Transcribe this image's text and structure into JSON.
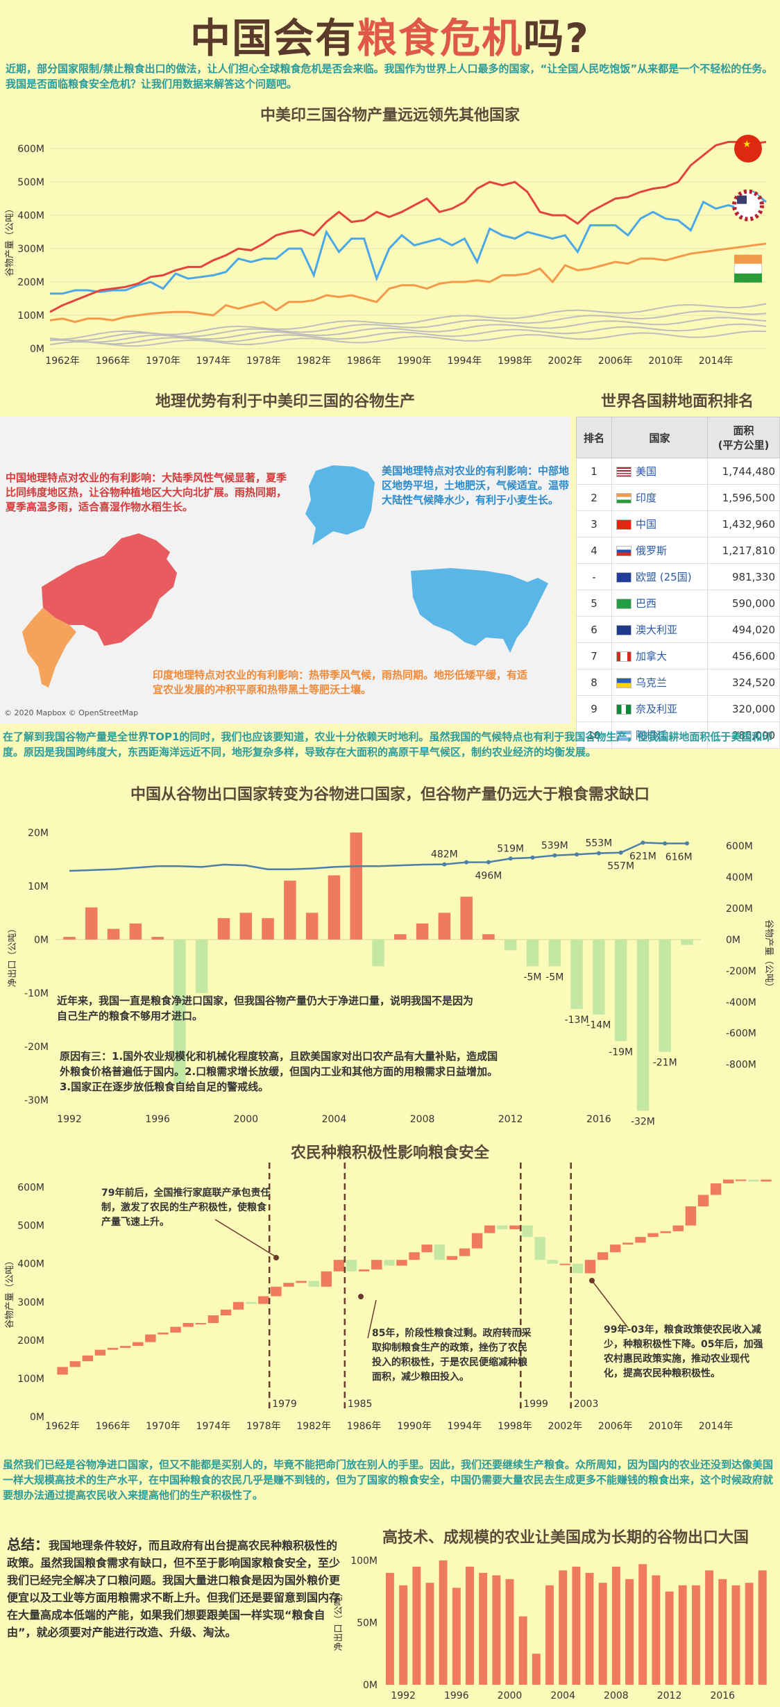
{
  "title": {
    "part1": "中国会有",
    "highlight": "粮食危机",
    "part2": "吗?"
  },
  "intro": "近期，部分国家限制/禁止粮食出口的做法，让人们担心全球粮食危机是否会来临。我国作为世界上人口最多的国家，“让全国人民吃饱饭”从来都是一个不轻松的任务。我国是否面临粮食安全危机？让我们用数据来解答这个问题吧。",
  "colors": {
    "china": "#e0443a",
    "usa": "#4aa8e8",
    "india": "#f39a4a",
    "other": "#b5b5b5",
    "bar_pos": "#ef7a5e",
    "bar_neg": "#c4e8a4",
    "line": "#4a7fa8",
    "teal": "#2a9a9a"
  },
  "chart_data": [
    {
      "type": "line",
      "title": "中美印三国谷物产量远远领先其他国家",
      "ylabel": "谷物产量（公吨）",
      "ylim": [
        0,
        650
      ],
      "yticks": [
        "0M",
        "100M",
        "200M",
        "300M",
        "400M",
        "500M",
        "600M"
      ],
      "xticks": [
        "1962年",
        "1966年",
        "1970年",
        "1974年",
        "1978年",
        "1982年",
        "1986年",
        "1990年",
        "1994年",
        "1998年",
        "2002年",
        "2006年",
        "2010年",
        "2014年"
      ],
      "x_start": 1961,
      "series": [
        {
          "name": "中国",
          "icon": "china-flag-icon",
          "values": [
            110,
            130,
            145,
            160,
            175,
            180,
            185,
            195,
            215,
            220,
            235,
            245,
            245,
            265,
            280,
            300,
            295,
            315,
            340,
            350,
            355,
            340,
            380,
            410,
            380,
            385,
            410,
            395,
            410,
            430,
            450,
            410,
            420,
            440,
            480,
            500,
            490,
            500,
            470,
            410,
            400,
            400,
            375,
            410,
            430,
            450,
            455,
            470,
            480,
            485,
            500,
            550,
            580,
            610,
            620,
            620,
            615,
            620
          ]
        },
        {
          "name": "美国",
          "icon": "usa-flag-icon",
          "values": [
            165,
            165,
            175,
            175,
            170,
            175,
            175,
            190,
            200,
            180,
            225,
            210,
            215,
            220,
            230,
            270,
            260,
            270,
            270,
            300,
            300,
            220,
            350,
            290,
            330,
            330,
            210,
            300,
            340,
            310,
            320,
            330,
            310,
            330,
            260,
            360,
            340,
            330,
            350,
            340,
            330,
            340,
            290,
            370,
            370,
            370,
            340,
            390,
            410,
            390,
            385,
            355,
            440,
            420,
            430,
            420,
            470,
            440
          ]
        },
        {
          "name": "印度",
          "icon": "india-flag-icon",
          "values": [
            85,
            90,
            80,
            90,
            90,
            85,
            95,
            100,
            105,
            108,
            110,
            110,
            105,
            100,
            130,
            120,
            130,
            140,
            115,
            140,
            140,
            145,
            160,
            155,
            160,
            150,
            140,
            180,
            190,
            190,
            180,
            195,
            200,
            200,
            205,
            200,
            220,
            220,
            225,
            240,
            200,
            250,
            235,
            240,
            250,
            260,
            255,
            270,
            270,
            265,
            275,
            285,
            290,
            295,
            300,
            305,
            310,
            315
          ]
        },
        {
          "name": "其他国家",
          "values": [
            40,
            40,
            42,
            44,
            46,
            48,
            50,
            52,
            54,
            55,
            56,
            58,
            60,
            62,
            64,
            66,
            68,
            70,
            72,
            74,
            76,
            78,
            80,
            82,
            84,
            86,
            88,
            90,
            92,
            94,
            96,
            98,
            100,
            102,
            104,
            106,
            108,
            110,
            112,
            114,
            116,
            118,
            120,
            122,
            124,
            126,
            128,
            130,
            132,
            134,
            136,
            138,
            140,
            142,
            144,
            146,
            148,
            150
          ]
        }
      ]
    },
    {
      "type": "bar",
      "title": "中国从谷物出口国家转变为谷物进口国家，但谷物产量仍远大于粮食需求缺口",
      "ylabel": "净出口（公吨）",
      "ylabel_right": "谷物产量（公吨）",
      "ylim": [
        -30,
        24
      ],
      "yticks_left": [
        "-30M",
        "-20M",
        "-10M",
        "0M",
        "10M",
        "20M"
      ],
      "yticks_right": [
        "-800M",
        "-600M",
        "-400M",
        "-200M",
        "0M",
        "200M",
        "400M",
        "600M"
      ],
      "xticks": [
        "1992",
        "1996",
        "2000",
        "2004",
        "2008",
        "2012",
        "2016"
      ],
      "x_start": 1992,
      "values": [
        0.5,
        6,
        2,
        3,
        0.5,
        -27,
        -10,
        4,
        5,
        4,
        11,
        5,
        12,
        20,
        -5,
        1,
        3,
        5,
        8,
        1,
        -2,
        -5,
        -5,
        -13,
        -14,
        -19,
        -32,
        -21,
        -1
      ],
      "bar_labels": [
        {
          "i": 21,
          "t": "-5M"
        },
        {
          "i": 22,
          "t": "-5M"
        },
        {
          "i": 23,
          "t": "-13M"
        },
        {
          "i": 24,
          "t": "-14M"
        },
        {
          "i": 25,
          "t": "-19M"
        },
        {
          "i": 26,
          "t": "-32M"
        },
        {
          "i": 27,
          "t": "-21M"
        }
      ],
      "line_values": [
        440,
        445,
        450,
        460,
        470,
        470,
        465,
        480,
        475,
        450,
        450,
        455,
        465,
        470,
        470,
        475,
        480,
        482,
        495,
        496,
        519,
        525,
        539,
        545,
        553,
        557,
        621,
        616,
        616
      ],
      "line_labels": [
        {
          "i": 17,
          "t": "482M",
          "pos": "above"
        },
        {
          "i": 19,
          "t": "496M",
          "pos": "below"
        },
        {
          "i": 20,
          "t": "519M",
          "pos": "above"
        },
        {
          "i": 22,
          "t": "539M",
          "pos": "above"
        },
        {
          "i": 24,
          "t": "553M",
          "pos": "above"
        },
        {
          "i": 25,
          "t": "557M",
          "pos": "below"
        },
        {
          "i": 26,
          "t": "621M",
          "pos": "below"
        },
        {
          "i": 27,
          "t": "616M",
          "pos": "belowright"
        }
      ]
    },
    {
      "type": "bar",
      "title": "农民种粮积极性影响粮食安全",
      "ylabel": "谷物产量（公吨）",
      "ylim": [
        0,
        650
      ],
      "yticks": [
        "0M",
        "100M",
        "200M",
        "300M",
        "400M",
        "500M",
        "600M"
      ],
      "xticks": [
        "1962年",
        "1966年",
        "1970年",
        "1974年",
        "1978年",
        "1982年",
        "1986年",
        "1990年",
        "1994年",
        "1998年",
        "2002年",
        "2006年",
        "2010年",
        "2014年"
      ],
      "x_start": 1961,
      "values": [
        110,
        130,
        145,
        160,
        175,
        180,
        185,
        195,
        215,
        220,
        235,
        245,
        245,
        265,
        280,
        300,
        295,
        315,
        340,
        350,
        355,
        340,
        380,
        410,
        380,
        385,
        410,
        395,
        410,
        430,
        450,
        410,
        420,
        440,
        480,
        500,
        490,
        500,
        470,
        410,
        400,
        400,
        375,
        410,
        430,
        450,
        455,
        470,
        480,
        485,
        500,
        550,
        580,
        610,
        620,
        620,
        615,
        620
      ],
      "markers": [
        "1979",
        "1985",
        "1999",
        "2003"
      ]
    },
    {
      "type": "bar",
      "title": "高技术、成规模的农业让美国成为长期的谷物出口大国",
      "ylabel": "净出口（公吨）",
      "ylim": [
        0,
        105
      ],
      "yticks": [
        "0M",
        "50M",
        "100M"
      ],
      "xticks": [
        "1992",
        "1996",
        "2000",
        "2004",
        "2008",
        "2012",
        "2016"
      ],
      "x_start": 1991,
      "values": [
        90,
        80,
        95,
        82,
        100,
        78,
        95,
        90,
        88,
        85,
        55,
        25,
        80,
        92,
        95,
        90,
        82,
        95,
        85,
        97,
        88,
        75,
        80,
        80,
        92,
        85,
        80,
        82,
        92
      ]
    }
  ],
  "map": {
    "title": "地理优势有利于中美印三国的谷物生产",
    "china_text": "中国地理特点对农业的有利影响：大陆季风性气候显著，夏季比同纬度地区热，让谷物种植地区大大向北扩展。雨热同期，夏季高温多雨，适合喜湿作物水稻生长。",
    "usa_text": "美国地理特点对农业的有利影响：中部地区地势平坦，土地肥沃，气候适宜。温带大陆性气候降水少，有利于小麦生长。",
    "india_text": "印度地理特点对农业的有利影响：热带季风气候，雨热同期。地形低矮平缓，有适宜农业发展的冲积平原和热带黑土等肥沃土壤。",
    "credit": "© 2020 Mapbox © OpenStreetMap"
  },
  "table": {
    "title": "世界各国耕地面积排名",
    "headers": {
      "rank": "排名",
      "country": "国家",
      "area": "面积\n(平方公里)"
    },
    "rows": [
      {
        "rank": "1",
        "country": "美国",
        "area": "1,744,480",
        "flag": "usa"
      },
      {
        "rank": "2",
        "country": "印度",
        "area": "1,596,500",
        "flag": "india"
      },
      {
        "rank": "3",
        "country": "中国",
        "area": "1,432,960",
        "flag": "china"
      },
      {
        "rank": "4",
        "country": "俄罗斯",
        "area": "1,217,810",
        "flag": "russia"
      },
      {
        "rank": "-",
        "country": "欧盟 (25国)",
        "area": "981,330",
        "flag": "eu"
      },
      {
        "rank": "5",
        "country": "巴西",
        "area": "590,000",
        "flag": "brazil"
      },
      {
        "rank": "6",
        "country": "澳大利亚",
        "area": "494,020",
        "flag": "australia"
      },
      {
        "rank": "7",
        "country": "加拿大",
        "area": "456,600",
        "flag": "canada"
      },
      {
        "rank": "8",
        "country": "乌克兰",
        "area": "324,520",
        "flag": "ukraine"
      },
      {
        "rank": "9",
        "country": "奈及利亚",
        "area": "320,000",
        "flag": "nigeria"
      },
      {
        "rank": "10",
        "country": "阿根廷",
        "area": "285,000",
        "flag": "argentina"
      }
    ]
  },
  "para2": "在了解到我国谷物产量是全世界TOP1的同时，我们也应该要知道，农业十分依赖天时地利。虽然我国的气候特点也有利于我国谷物生产，但我国耕地面积低于美国和印度。原因是我国跨纬度大，东西距海洋远近不同，地形复杂多样，导致存在大面积的高原干旱气候区，制约农业经济的均衡发展。",
  "chart2_note1": "近年来，我国一直是粮食净进口国家，但我国谷物产量仍大于净进口量，说明我国不是因为自己生产的粮食不够用才进口。",
  "chart2_note2": "原因有三：1.国外农业规模化和机械化程度较高，且欧美国家对出口农产品有大量补贴，造成国外粮食价格普遍低于国内。2.口粮需求增长放缓，但国内工业和其他方面的用粮需求日益增加。3.国家正在逐步放低粮食自给自足的警戒线。",
  "chart3_ann1": "79年前后，全国推行家庭联产承包责任制，激发了农民的生产积极性，使粮食产量飞速上升。",
  "chart3_ann2": "85年，阶段性粮食过剩。政府转而采取抑制粮食生产的政策，挫伤了农民投入的积极性，于是农民便缩减种粮面积，减少粮田投入。",
  "chart3_ann3": "99年-03年，粮食政策使农民收入减少，种粮积极性下降。05年后，加强农村惠民政策实施，推动农业现代化，提高农民种粮积极性。",
  "para3": "虽然我们已经是谷物净进口国家，但又不能都是买别人的，毕竟不能把命门放在别人的手里。因此，我们还要继续生产粮食。众所周知，因为国内的农业还没到达像美国一样大规模高技术的生产水平，在中国种粮食的农民几乎是赚不到钱的，但为了国家的粮食安全，中国仍需要大量农民去生成更多不能赚钱的粮食出来，这个时候政府就要想办法通过提高农民收入来提高他们的生产积极性了。",
  "summary": {
    "label": "总结：",
    "text": "我国地理条件较好，而且政府有出台提高农民种粮积极性的政策。虽然我国粮食需求有缺口，但不至于影响国家粮食安全，至少我们已经完全解决了口粮问题。我国大量进口粮食是因为国外粮价更便宜以及工业等方面用粮需求不断上升。但我们还是要留意到国内存在大量高成本低端的产能，如果我们想要跟美国一样实现“粮食自由”，就必须要对产能进行改造、升级、淘汰。"
  }
}
